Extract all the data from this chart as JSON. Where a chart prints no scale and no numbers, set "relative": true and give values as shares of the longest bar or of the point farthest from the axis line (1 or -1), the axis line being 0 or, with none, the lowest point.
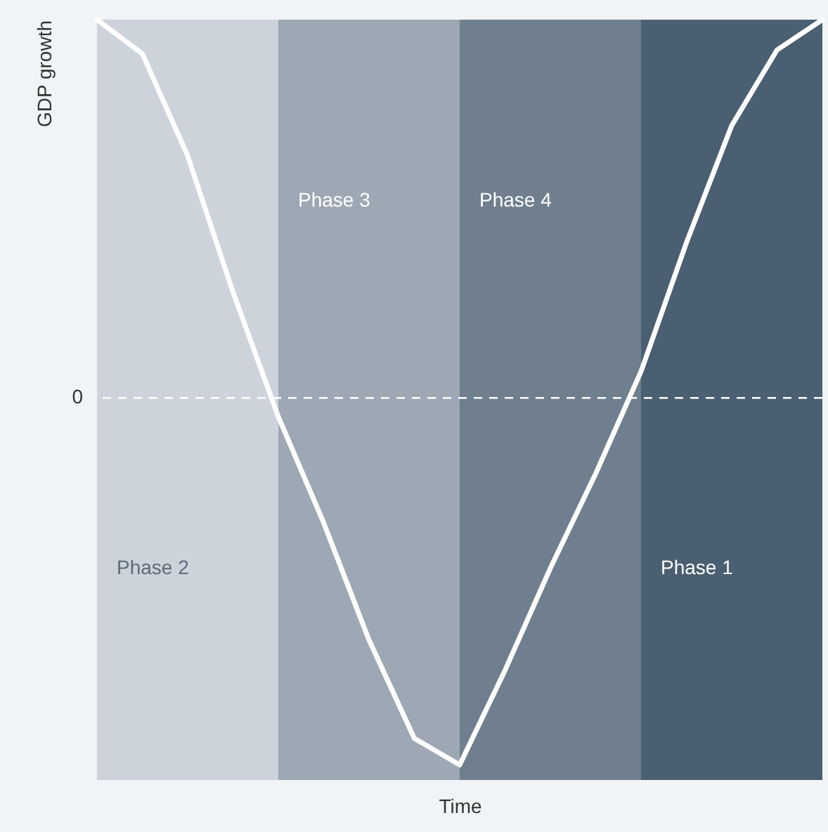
{
  "chart_data": {
    "type": "line",
    "relative": true,
    "xlabel": "Time",
    "ylabel": "GDP growth",
    "categories": [
      null,
      null,
      null,
      null,
      null,
      null,
      null,
      null,
      null,
      null,
      null,
      null,
      null,
      null,
      null,
      null,
      null
    ],
    "series": [
      {
        "color": "#ffffff",
        "values": [
          1,
          0.91,
          0.64,
          0.28,
          -0.05,
          -0.33,
          -0.64,
          -0.9,
          -0.97,
          -0.72,
          -0.45,
          -0.2,
          0.07,
          0.41,
          0.72,
          0.92,
          1
        ]
      }
    ],
    "ref_lines": [
      {
        "axis": "y",
        "value": 0,
        "label": "0",
        "color": "#ffffff",
        "line_style": "dashed"
      }
    ],
    "annotations": [
      "Phase 2",
      "Phase 3",
      "Phase 4",
      "Phase 1"
    ]
  }
}
